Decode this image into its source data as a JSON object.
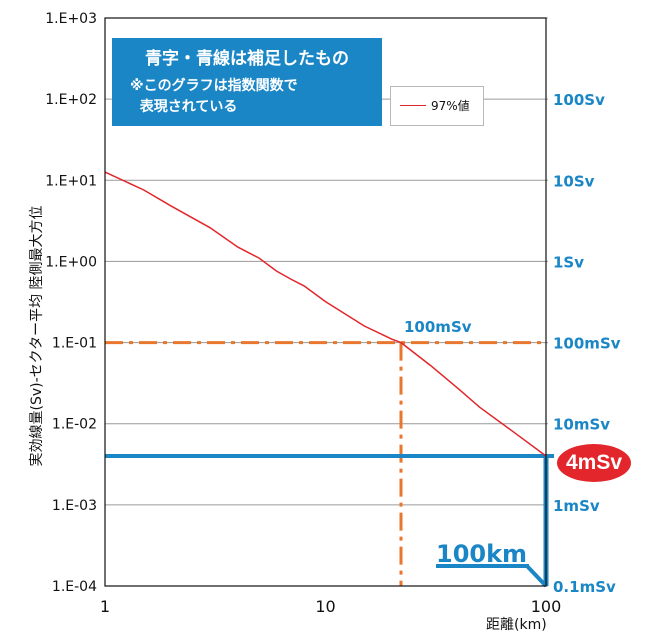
{
  "colors": {
    "series": "#e2262b",
    "guide_orange": "#e8762c",
    "guide_blue": "#1a86c6",
    "grid": "#9a9a9a"
  },
  "chart_data": {
    "type": "line",
    "x_scale": "log",
    "y_scale": "log",
    "xlim": [
      1,
      100
    ],
    "ylim": [
      0.0001,
      1000
    ],
    "xlabel": "距離(km)",
    "ylabel": "実効線量(Sv)-セクター平均  陸側最大方位",
    "x_tick_labels": [
      "1",
      "10",
      "100"
    ],
    "y_tick_labels": [
      "1.E+03",
      "1.E+02",
      "1.E+01",
      "1.E+00",
      "1.E-01",
      "1.E-02",
      "1.E-03",
      "1.E-04"
    ],
    "right_axis_labels": [
      {
        "value": 100,
        "label": "100Sv"
      },
      {
        "value": 10,
        "label": "10Sv"
      },
      {
        "value": 1,
        "label": "1Sv"
      },
      {
        "value": 0.1,
        "label": "100mSv"
      },
      {
        "value": 0.01,
        "label": "10mSv"
      },
      {
        "value": 0.001,
        "label": "1mSv"
      },
      {
        "value": 0.0001,
        "label": "0.1mSv"
      }
    ],
    "grid": true,
    "legend_position": "top-center",
    "series": [
      {
        "name": "97%値",
        "x": [
          1,
          1.5,
          2,
          3,
          4,
          5,
          6,
          7,
          8,
          10,
          15,
          20,
          22,
          30,
          40,
          50,
          70,
          100
        ],
        "y": [
          12.6,
          7.6,
          4.8,
          2.6,
          1.5,
          1.1,
          0.76,
          0.6,
          0.5,
          0.32,
          0.16,
          0.11,
          0.1,
          0.052,
          0.027,
          0.016,
          0.0082,
          0.004
        ]
      }
    ],
    "annotations": {
      "note_title": "青字・青線は補足したもの",
      "note_body": "※このグラフは指数関数で\n  表現されている",
      "line_100msv_label": "100mSv",
      "line_100msv_value": 0.1,
      "line_100msv_x": 22,
      "line_4msv_label": "4mSv",
      "line_4msv_value": 0.004,
      "line_100km_label": "100km",
      "line_100km_x": 100
    }
  }
}
